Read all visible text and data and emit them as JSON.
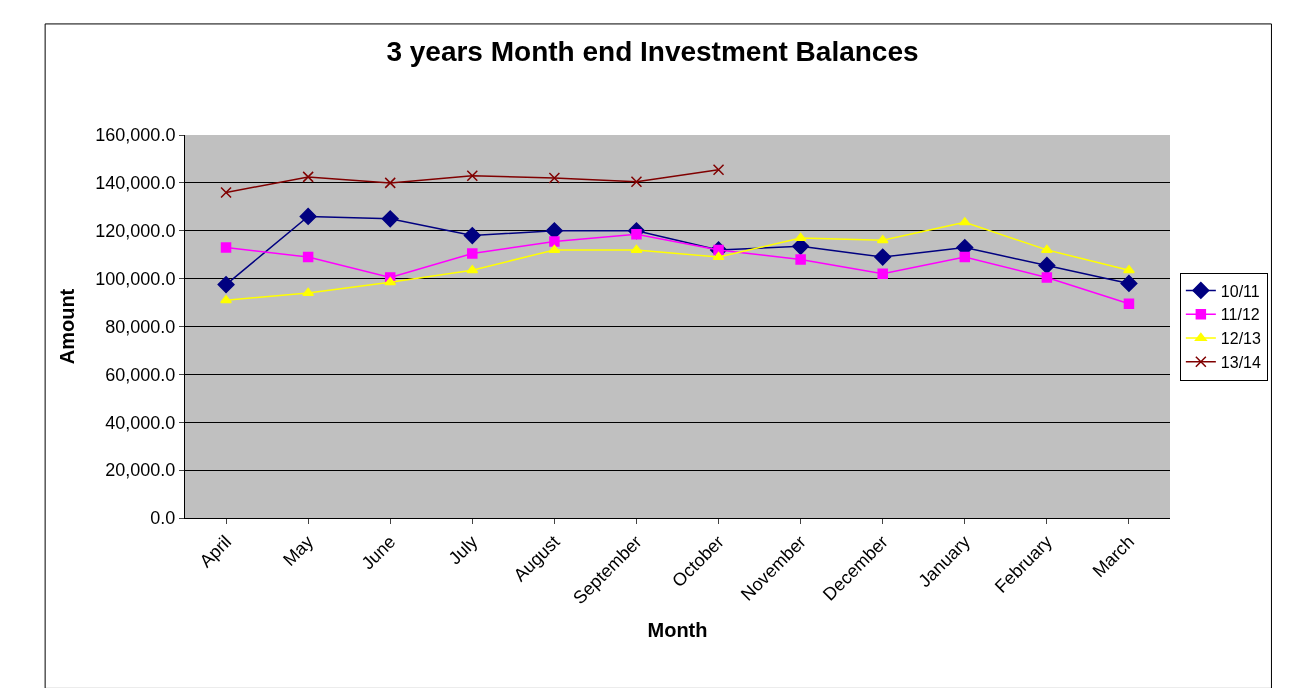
{
  "chart_data": {
    "type": "line",
    "title": "3 years Month end Investment Balances",
    "xlabel": "Month",
    "ylabel": "Amount",
    "categories": [
      "April",
      "May",
      "June",
      "July",
      "August",
      "September",
      "October",
      "November",
      "December",
      "January",
      "February",
      "March"
    ],
    "series": [
      {
        "name": "10/11",
        "color": "#000080",
        "marker": "diamond",
        "values": [
          97500,
          126000,
          125000,
          118000,
          120000,
          120000,
          112000,
          113500,
          109000,
          113000,
          105500,
          98000
        ]
      },
      {
        "name": "11/12",
        "color": "#ff00ff",
        "marker": "square",
        "values": [
          113000,
          109000,
          100500,
          110500,
          115500,
          118500,
          112000,
          108000,
          102000,
          109000,
          100500,
          89500
        ]
      },
      {
        "name": "12/13",
        "color": "#ffff00",
        "marker": "triangle",
        "values": [
          91000,
          94000,
          98500,
          103500,
          112000,
          112000,
          109000,
          117000,
          116000,
          123500,
          112000,
          103500
        ]
      },
      {
        "name": "13/14",
        "color": "#800000",
        "marker": "cross",
        "values": [
          136000,
          142500,
          140000,
          143000,
          142000,
          140500,
          145500,
          null,
          null,
          null,
          null,
          null
        ]
      }
    ],
    "ylim": [
      0,
      160000
    ],
    "yticks": [
      {
        "value": 0,
        "label": "0.0"
      },
      {
        "value": 20000,
        "label": "20,000.0"
      },
      {
        "value": 40000,
        "label": "40,000.0"
      },
      {
        "value": 60000,
        "label": "60,000.0"
      },
      {
        "value": 80000,
        "label": "80,000.0"
      },
      {
        "value": 100000,
        "label": "100,000.0"
      },
      {
        "value": 120000,
        "label": "120,000.0"
      },
      {
        "value": 140000,
        "label": "140,000.0"
      },
      {
        "value": 160000,
        "label": "160,000.0"
      }
    ],
    "grid": "y",
    "legend": "right",
    "line_style": "solid"
  }
}
